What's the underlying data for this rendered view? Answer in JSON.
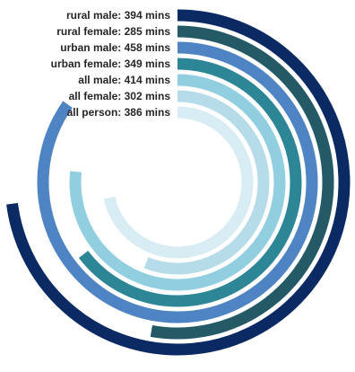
{
  "chart_data": {
    "type": "radial-bar",
    "title": "",
    "unit": "mins",
    "max_value": 540,
    "series": [
      {
        "name": "rural male",
        "value": 394,
        "label": "rural male: 394 mins",
        "color": "#0b2a63"
      },
      {
        "name": "rural female",
        "value": 285,
        "label": "rural female: 285 mins",
        "color": "#245a66"
      },
      {
        "name": "urban male",
        "value": 458,
        "label": "urban male: 458 mins",
        "color": "#4f84c4"
      },
      {
        "name": "urban female",
        "value": 349,
        "label": "urban female: 349 mins",
        "color": "#2d8696"
      },
      {
        "name": "all male",
        "value": 414,
        "label": "all male: 414 mins",
        "color": "#91cfe0"
      },
      {
        "name": "all female",
        "value": 302,
        "label": "all female: 302 mins",
        "color": "#b5dce8"
      },
      {
        "name": "all person",
        "value": 386,
        "label": "all person: 386 mins",
        "color": "#d7ecf3"
      }
    ]
  }
}
